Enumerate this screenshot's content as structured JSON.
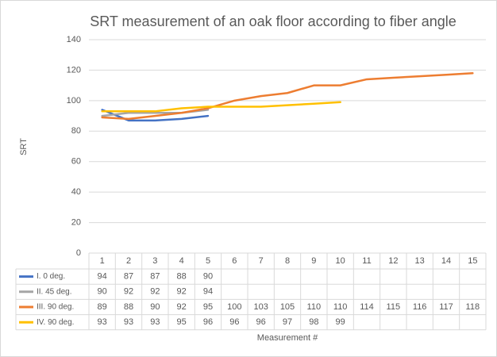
{
  "chart_data": {
    "type": "line",
    "title": "SRT measurement of an oak floor according to fiber angle",
    "y_label": "SRT",
    "x_label": "Measurement #",
    "categories": [
      "1",
      "2",
      "3",
      "4",
      "5",
      "6",
      "7",
      "8",
      "9",
      "10",
      "11",
      "12",
      "13",
      "14",
      "15"
    ],
    "series": [
      {
        "name": "I. 0 deg.",
        "color": "#4472c4",
        "values": [
          94,
          87,
          87,
          88,
          90,
          null,
          null,
          null,
          null,
          null,
          null,
          null,
          null,
          null,
          null
        ]
      },
      {
        "name": "II. 45 deg.",
        "color": "#a5a5a5",
        "values": [
          90,
          92,
          92,
          92,
          94,
          null,
          null,
          null,
          null,
          null,
          null,
          null,
          null,
          null,
          null
        ]
      },
      {
        "name": "III. 90 deg.",
        "color": "#ed7d31",
        "values": [
          89,
          88,
          90,
          92,
          95,
          100,
          103,
          105,
          110,
          110,
          114,
          115,
          116,
          117,
          118
        ]
      },
      {
        "name": "IV. 90 deg.",
        "color": "#ffc000",
        "values": [
          93,
          93,
          93,
          95,
          96,
          96,
          96,
          97,
          98,
          99,
          null,
          null,
          null,
          null,
          null
        ]
      }
    ],
    "ylim": [
      0,
      140
    ],
    "yticks": [
      0,
      20,
      40,
      60,
      80,
      100,
      120,
      140
    ],
    "grid": true
  }
}
